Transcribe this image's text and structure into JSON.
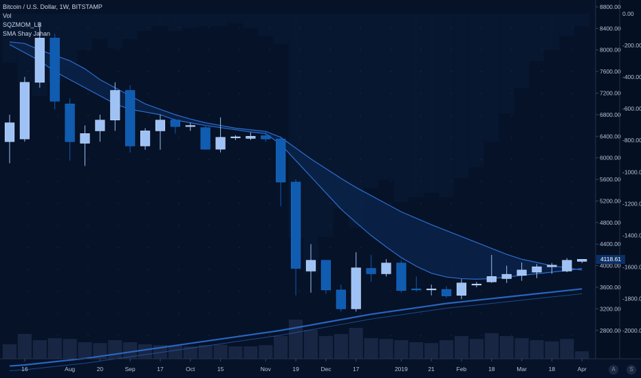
{
  "legend": {
    "symbol": "Bitcoin / U.S. Dollar, 1W, BITSTAMP",
    "vol": "Vol",
    "sqzmom": "SQZMOM_LB",
    "sma": "SMA Shay Jahan"
  },
  "scale_buttons": {
    "auto": "A",
    "settings": "S"
  },
  "colors": {
    "background": "#061228",
    "candle_up": "#9ec2f5",
    "candle_down": "#0f5cb0",
    "ma_band": "#0d2a5a",
    "ma_line": "#2c6fd1",
    "volume": "#1c2a48",
    "sqz_bg": "#0b1b36"
  },
  "chart_data": {
    "type": "candlestick",
    "title": "Bitcoin / U.S. Dollar, 1W, BITSTAMP",
    "last_price": "4118.61",
    "price_axis": {
      "range": [
        2300,
        8850
      ],
      "ticks": [
        "8800.00",
        "8400.00",
        "8000.00",
        "7600.00",
        "7200.00",
        "6800.00",
        "6400.00",
        "6000.00",
        "5600.00",
        "5200.00",
        "4800.00",
        "4400.00",
        "4000.00",
        "3600.00",
        "3200.00",
        "2800.00"
      ]
    },
    "oscillator_axis": {
      "range": [
        -2170,
        60
      ],
      "ticks": [
        "0.00",
        "-200.00",
        "-400.00",
        "-600.00",
        "-800.00",
        "-1000.00",
        "-1200.00",
        "-1400.00",
        "-1600.00",
        "-1800.00",
        "-2000.00"
      ]
    },
    "time_axis_labels": [
      "16",
      "Aug",
      "20",
      "Sep",
      "17",
      "Oct",
      "15",
      "Nov",
      "19",
      "Dec",
      "17",
      "2019",
      "21",
      "Feb",
      "18",
      "Mar",
      "18",
      "Apr"
    ],
    "candles": [
      {
        "o": 6300,
        "h": 6800,
        "l": 5900,
        "c": 6650
      },
      {
        "o": 6350,
        "h": 7500,
        "l": 6300,
        "c": 7400
      },
      {
        "o": 7400,
        "h": 8500,
        "l": 7300,
        "c": 8220
      },
      {
        "o": 8220,
        "h": 8300,
        "l": 6900,
        "c": 7050
      },
      {
        "o": 7000,
        "h": 7100,
        "l": 5950,
        "c": 6300
      },
      {
        "o": 6270,
        "h": 6600,
        "l": 5850,
        "c": 6450
      },
      {
        "o": 6500,
        "h": 6800,
        "l": 6300,
        "c": 6700
      },
      {
        "o": 6700,
        "h": 7400,
        "l": 6500,
        "c": 7250
      },
      {
        "o": 7250,
        "h": 7350,
        "l": 6100,
        "c": 6220
      },
      {
        "o": 6220,
        "h": 6550,
        "l": 6150,
        "c": 6500
      },
      {
        "o": 6500,
        "h": 6800,
        "l": 6150,
        "c": 6700
      },
      {
        "o": 6700,
        "h": 6720,
        "l": 6450,
        "c": 6580
      },
      {
        "o": 6580,
        "h": 6650,
        "l": 6500,
        "c": 6600
      },
      {
        "o": 6560,
        "h": 6600,
        "l": 6150,
        "c": 6160
      },
      {
        "o": 6160,
        "h": 6750,
        "l": 6100,
        "c": 6380
      },
      {
        "o": 6370,
        "h": 6420,
        "l": 6330,
        "c": 6390
      },
      {
        "o": 6360,
        "h": 6470,
        "l": 6330,
        "c": 6400
      },
      {
        "o": 6410,
        "h": 6500,
        "l": 6300,
        "c": 6350
      },
      {
        "o": 6350,
        "h": 6400,
        "l": 5100,
        "c": 5550
      },
      {
        "o": 5550,
        "h": 5600,
        "l": 3450,
        "c": 3950
      },
      {
        "o": 3900,
        "h": 4400,
        "l": 3500,
        "c": 4100
      },
      {
        "o": 4100,
        "h": 4100,
        "l": 3480,
        "c": 3550
      },
      {
        "o": 3550,
        "h": 3650,
        "l": 3150,
        "c": 3200
      },
      {
        "o": 3200,
        "h": 4250,
        "l": 3150,
        "c": 3960
      },
      {
        "o": 3950,
        "h": 4200,
        "l": 3700,
        "c": 3850
      },
      {
        "o": 3850,
        "h": 4120,
        "l": 3800,
        "c": 4050
      },
      {
        "o": 4050,
        "h": 4100,
        "l": 3500,
        "c": 3540
      },
      {
        "o": 3570,
        "h": 3800,
        "l": 3520,
        "c": 3560
      },
      {
        "o": 3560,
        "h": 3650,
        "l": 3450,
        "c": 3570
      },
      {
        "o": 3560,
        "h": 3620,
        "l": 3400,
        "c": 3440
      },
      {
        "o": 3450,
        "h": 3750,
        "l": 3380,
        "c": 3680
      },
      {
        "o": 3650,
        "h": 3700,
        "l": 3600,
        "c": 3660
      },
      {
        "o": 3700,
        "h": 4200,
        "l": 3680,
        "c": 3800
      },
      {
        "o": 3760,
        "h": 4000,
        "l": 3680,
        "c": 3840
      },
      {
        "o": 3820,
        "h": 4060,
        "l": 3720,
        "c": 3920
      },
      {
        "o": 3880,
        "h": 4030,
        "l": 3770,
        "c": 3980
      },
      {
        "o": 3980,
        "h": 4050,
        "l": 3850,
        "c": 4010
      },
      {
        "o": 3900,
        "h": 4140,
        "l": 3880,
        "c": 4100
      },
      {
        "o": 4080,
        "h": 4120,
        "l": 4050,
        "c": 4118.61
      }
    ],
    "ma_fast": [
      8100,
      7950,
      7800,
      7600,
      7450,
      7300,
      7150,
      7000,
      6900,
      6850,
      6800,
      6700,
      6650,
      6600,
      6560,
      6520,
      6480,
      6450,
      6250,
      5950,
      5650,
      5350,
      5050,
      4800,
      4560,
      4350,
      4150,
      3990,
      3860,
      3790,
      3760,
      3750,
      3760,
      3790,
      3820,
      3850,
      3880,
      3910,
      3950
    ],
    "ma_slow": [
      8150,
      8120,
      8000,
      7900,
      7800,
      7650,
      7450,
      7300,
      7150,
      7000,
      6900,
      6800,
      6720,
      6650,
      6600,
      6550,
      6520,
      6490,
      6380,
      6180,
      5980,
      5800,
      5620,
      5450,
      5300,
      5150,
      5000,
      4880,
      4760,
      4650,
      4540,
      4430,
      4320,
      4210,
      4120,
      4060,
      4000,
      3960,
      3920
    ],
    "ma_long": [
      2140,
      2160,
      2190,
      2220,
      2250,
      2280,
      2320,
      2360,
      2400,
      2440,
      2480,
      2520,
      2560,
      2600,
      2640,
      2680,
      2720,
      2760,
      2800,
      2850,
      2900,
      2950,
      3000,
      3050,
      3100,
      3140,
      3180,
      3220,
      3260,
      3300,
      3330,
      3360,
      3390,
      3420,
      3450,
      3480,
      3510,
      3540,
      3570
    ],
    "volume_rel": [
      0.35,
      0.6,
      0.45,
      0.5,
      0.48,
      0.4,
      0.38,
      0.45,
      0.4,
      0.35,
      0.33,
      0.32,
      0.3,
      0.33,
      0.34,
      0.3,
      0.3,
      0.33,
      0.55,
      0.95,
      0.7,
      0.55,
      0.6,
      0.75,
      0.5,
      0.48,
      0.45,
      0.4,
      0.38,
      0.45,
      0.55,
      0.48,
      0.62,
      0.55,
      0.5,
      0.45,
      0.42,
      0.48,
      0.18
    ],
    "sqz_momentum": [
      -310,
      -430,
      -520,
      -430,
      -340,
      -230,
      -160,
      -220,
      -160,
      -110,
      -80,
      -110,
      -90,
      -80,
      -80,
      -60,
      -90,
      -140,
      -190,
      -1420,
      -1640,
      -1410,
      -1230,
      -1350,
      -1100,
      -1050,
      -1190,
      -1160,
      -1130,
      -1160,
      -1040,
      -970,
      -810,
      -630,
      -470,
      -300,
      -230,
      -140,
      -80
    ]
  }
}
